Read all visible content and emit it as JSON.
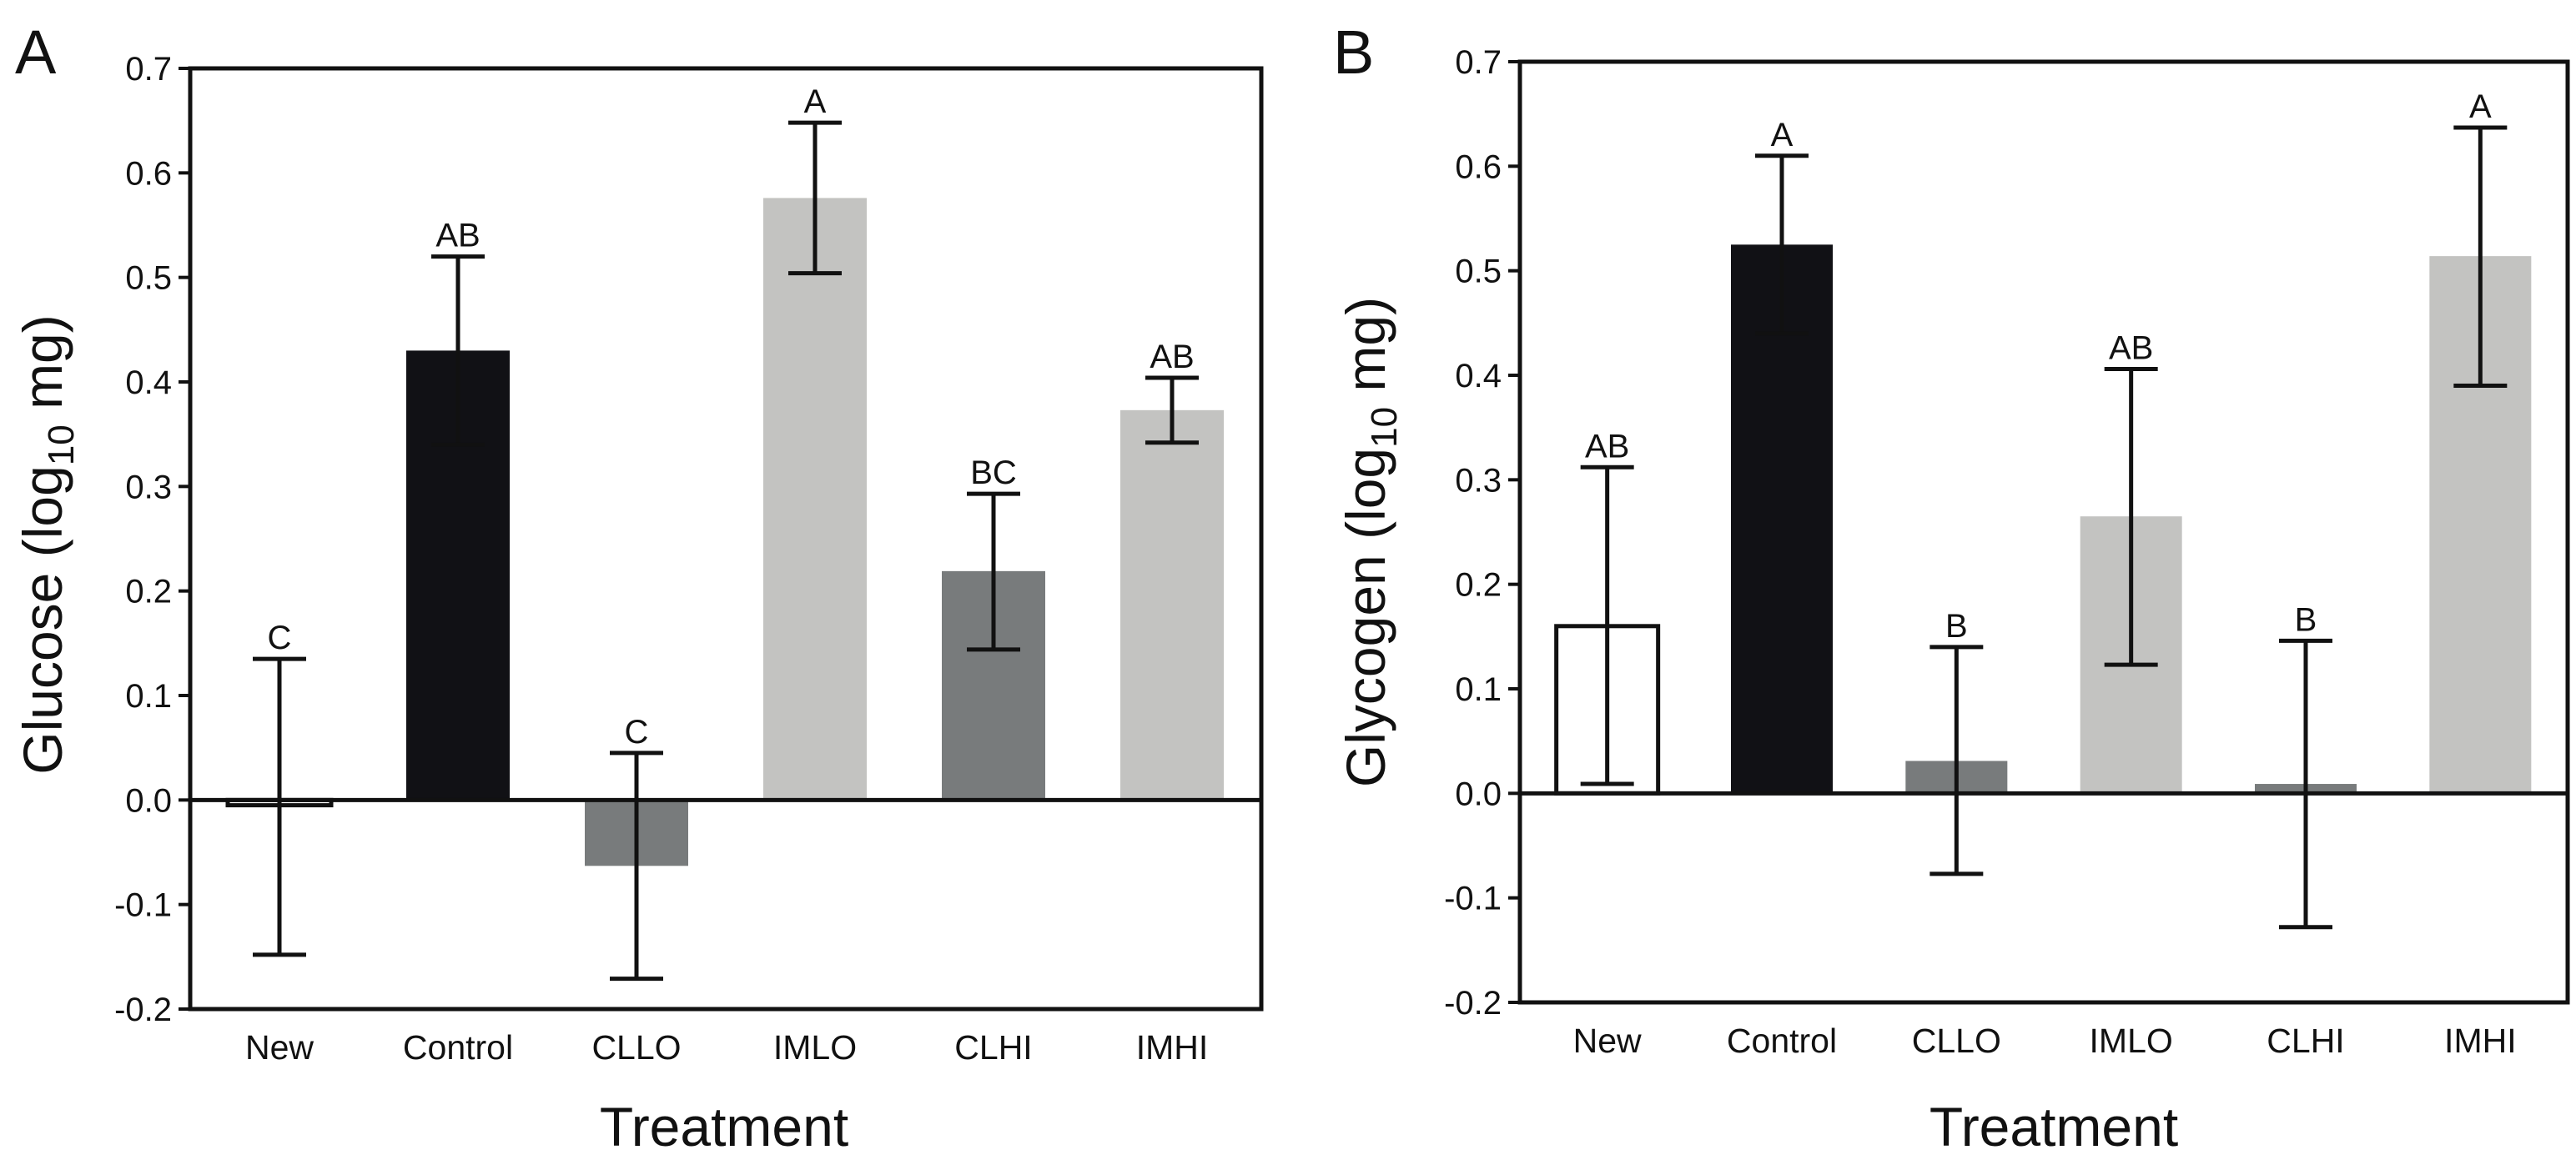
{
  "chart_data": [
    {
      "type": "bar",
      "panel": "A",
      "ylabel": "Glucose (log10 mg)",
      "ylabel_parts": {
        "pre": "Glucose (log",
        "sub": "10",
        "post": " mg)"
      },
      "xlabel": "Treatment",
      "ylim": [
        -0.2,
        0.7
      ],
      "yticks": [
        -0.2,
        -0.1,
        0.0,
        0.1,
        0.2,
        0.3,
        0.4,
        0.5,
        0.6,
        0.7
      ],
      "ytick_labels": [
        "-0.2",
        "-0.1",
        "0.0",
        "0.1",
        "0.2",
        "0.3",
        "0.4",
        "0.5",
        "0.6",
        "0.7"
      ],
      "categories": [
        "New",
        "Control",
        "CLLO",
        "IMLO",
        "CLHI",
        "IMHI"
      ],
      "values": [
        -0.005,
        0.43,
        -0.063,
        0.576,
        0.219,
        0.373
      ],
      "error_low": [
        -0.148,
        0.34,
        -0.171,
        0.504,
        0.144,
        0.342
      ],
      "error_high": [
        0.135,
        0.52,
        0.045,
        0.648,
        0.293,
        0.404
      ],
      "significance": [
        "C",
        "AB",
        "C",
        "A",
        "BC",
        "AB"
      ],
      "bar_fill": [
        "#ffffff",
        "#111115",
        "#787b7c",
        "#c3c3c1",
        "#787b7c",
        "#c3c3c1"
      ],
      "bar_outline": [
        "#111111",
        "none",
        "none",
        "none",
        "none",
        "none"
      ]
    },
    {
      "type": "bar",
      "panel": "B",
      "ylabel": "Glycogen (log10 mg)",
      "ylabel_parts": {
        "pre": "Glycogen (log",
        "sub": "10",
        "post": " mg)"
      },
      "xlabel": "Treatment",
      "ylim": [
        -0.2,
        0.7
      ],
      "yticks": [
        -0.2,
        -0.1,
        0.0,
        0.1,
        0.2,
        0.3,
        0.4,
        0.5,
        0.6,
        0.7
      ],
      "ytick_labels": [
        "-0.2",
        "-0.1",
        "0.0",
        "0.1",
        "0.2",
        "0.3",
        "0.4",
        "0.5",
        "0.6",
        "0.7"
      ],
      "categories": [
        "New",
        "Control",
        "CLLO",
        "IMLO",
        "CLHI",
        "IMHI"
      ],
      "values": [
        0.16,
        0.525,
        0.031,
        0.265,
        0.009,
        0.514
      ],
      "error_low": [
        0.009,
        0.44,
        -0.077,
        0.123,
        -0.128,
        0.39
      ],
      "error_high": [
        0.312,
        0.61,
        0.14,
        0.406,
        0.146,
        0.637
      ],
      "significance": [
        "AB",
        "A",
        "B",
        "AB",
        "B",
        "A"
      ],
      "bar_fill": [
        "#ffffff",
        "#111115",
        "#787b7c",
        "#c3c3c1",
        "#787b7c",
        "#c3c3c1"
      ],
      "bar_outline": [
        "#111111",
        "none",
        "none",
        "none",
        "none",
        "none"
      ]
    }
  ]
}
